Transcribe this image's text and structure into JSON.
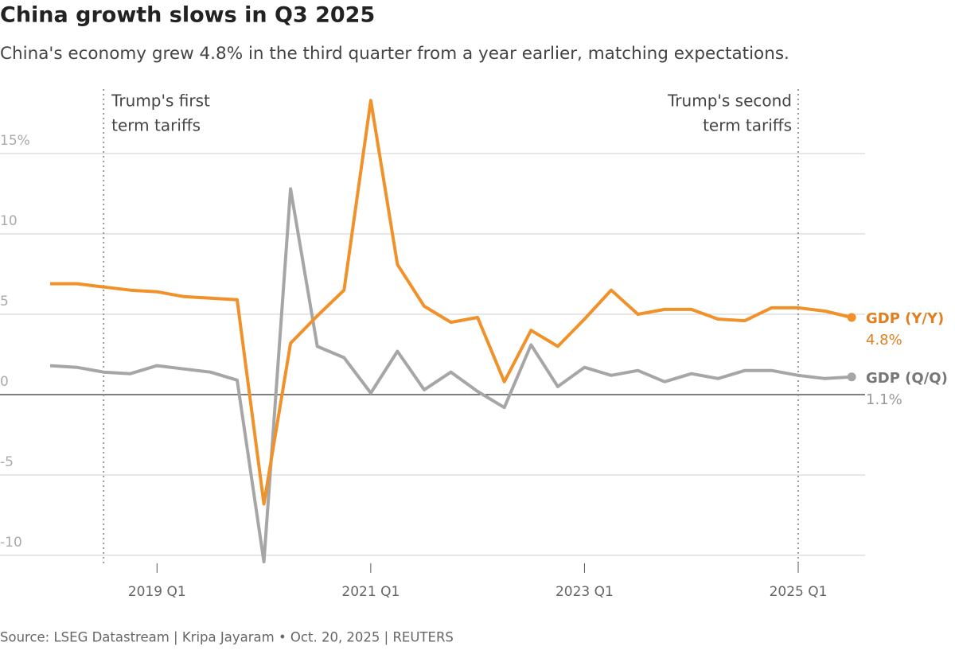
{
  "chart_data": {
    "type": "line",
    "title": "China growth slows in Q3 2025",
    "subtitle": "China's economy grew 4.8% in the third quarter from a year earlier, matching expectations.",
    "source": "Source: LSEG Datastream | Kripa Jayaram • Oct. 20, 2025 | REUTERS",
    "annotations": [
      {
        "lines": [
          "Trump's first",
          "term tariffs"
        ]
      },
      {
        "lines": [
          "Trump's second",
          "term tariffs"
        ]
      }
    ],
    "categories": [
      null,
      null,
      null,
      null,
      "2019 Q1",
      null,
      null,
      null,
      null,
      null,
      null,
      null,
      "2021 Q1",
      null,
      null,
      null,
      null,
      null,
      null,
      null,
      "2023 Q1",
      null,
      null,
      null,
      null,
      null,
      null,
      null,
      "2025 Q1",
      null,
      null
    ],
    "series": [
      {
        "name": "GDP (Y/Y)",
        "color": "#f0912a",
        "values": [
          6.9,
          6.9,
          6.7,
          6.5,
          6.4,
          6.1,
          6.0,
          5.9,
          -6.8,
          3.2,
          4.9,
          6.5,
          18.3,
          8.1,
          5.5,
          4.5,
          4.8,
          0.8,
          4.0,
          3.0,
          4.7,
          6.5,
          5.0,
          5.3,
          5.3,
          4.7,
          4.6,
          5.4,
          5.4,
          5.2,
          4.8
        ],
        "value_labels": [
          null,
          null,
          null,
          null,
          null,
          null,
          null,
          null,
          null,
          null,
          null,
          null,
          null,
          null,
          null,
          null,
          null,
          null,
          null,
          null,
          null,
          null,
          null,
          null,
          null,
          null,
          null,
          null,
          null,
          null,
          "4.8%"
        ]
      },
      {
        "name": "GDP (Q/Q)",
        "color": "#a6a6a6",
        "values": [
          1.8,
          1.7,
          1.4,
          1.3,
          1.8,
          1.6,
          1.4,
          0.9,
          -10.4,
          12.8,
          3.0,
          2.3,
          0.1,
          2.7,
          0.3,
          1.4,
          0.2,
          -0.8,
          3.1,
          0.5,
          1.7,
          1.2,
          1.5,
          0.8,
          1.3,
          1.0,
          1.5,
          1.5,
          1.2,
          1.0,
          1.1
        ],
        "value_labels": [
          null,
          null,
          null,
          null,
          null,
          null,
          null,
          null,
          null,
          null,
          null,
          null,
          null,
          null,
          null,
          null,
          null,
          null,
          null,
          null,
          null,
          null,
          null,
          null,
          null,
          null,
          null,
          null,
          null,
          null,
          "1.1%"
        ]
      }
    ],
    "ylim": [
      -10.5,
      19
    ],
    "yticks": [
      {
        "value": 15,
        "label": "15%"
      },
      10,
      5,
      0,
      -5,
      -10
    ],
    "grid": true
  }
}
